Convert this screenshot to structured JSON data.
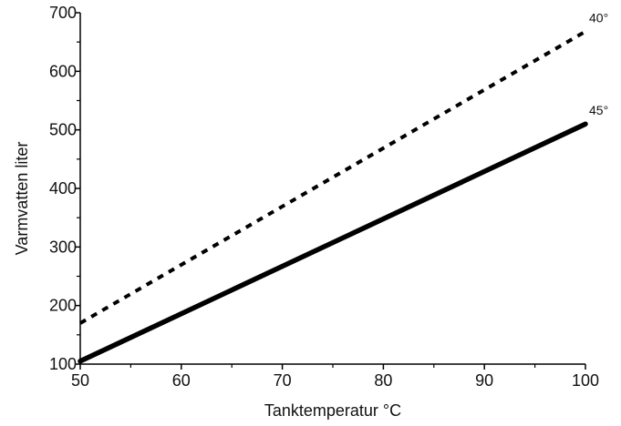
{
  "chart_data": {
    "type": "line",
    "title": "",
    "xlabel": "Tanktemperatur °C",
    "ylabel": "Varmvatten liter",
    "xlim": [
      50,
      100
    ],
    "ylim": [
      100,
      700
    ],
    "x_ticks": [
      50,
      60,
      70,
      80,
      90,
      100
    ],
    "y_ticks": [
      100,
      200,
      300,
      400,
      500,
      600,
      700
    ],
    "grid": false,
    "legend": "none",
    "series": [
      {
        "name": "40°",
        "x": [
          50,
          100
        ],
        "y": [
          170,
          668
        ],
        "line_style": "dashed",
        "color": "#000000"
      },
      {
        "name": "45°",
        "x": [
          50,
          100
        ],
        "y": [
          105,
          510
        ],
        "line_style": "solid",
        "color": "#000000"
      }
    ]
  }
}
